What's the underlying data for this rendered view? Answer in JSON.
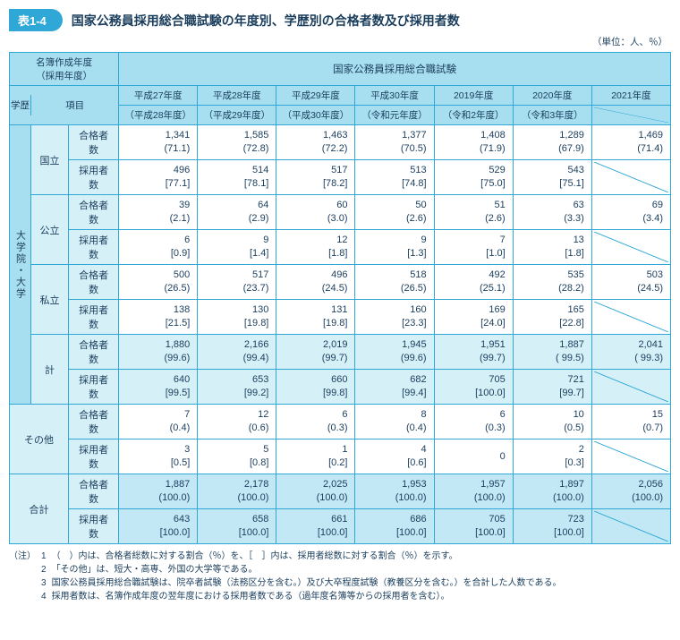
{
  "header": {
    "tag": "表1-4",
    "title": "国家公務員採用総合職試験の年度別、学歴別の合格者数及び採用者数"
  },
  "unit": "（単位：人、％）",
  "colHeaders": {
    "listYear": "名簿作成年度\n（採用年度）",
    "edu": "学歴",
    "item": "項目",
    "examTitle": "国家公務員採用総合職試験",
    "years": [
      "平成27年度",
      "平成28年度",
      "平成29年度",
      "平成30年度",
      "2019年度",
      "2020年度",
      "2021年度"
    ],
    "subyears": [
      "（平成28年度）",
      "（平成29年度）",
      "（平成30年度）",
      "（令和元年度）",
      "（令和2年度）",
      "（令和3年度）"
    ]
  },
  "rowLabels": {
    "gradUniv": "大学院・大学",
    "national": "国立",
    "public": "公立",
    "private": "私立",
    "subtotal": "計",
    "other": "その他",
    "total": "合計",
    "pass": "合格者数",
    "hire": "採用者数"
  },
  "data": {
    "national": {
      "pass": [
        "1,341\n(71.1)",
        "1,585\n(72.8)",
        "1,463\n(72.2)",
        "1,377\n(70.5)",
        "1,408\n(71.9)",
        "1,289\n(67.9)",
        "1,469\n(71.4)"
      ],
      "hire": [
        "496\n[77.1]",
        "514\n[78.1]",
        "517\n[78.2]",
        "513\n[74.8]",
        "529\n[75.0]",
        "543\n[75.1]",
        ""
      ]
    },
    "public": {
      "pass": [
        "39\n(2.1)",
        "64\n(2.9)",
        "60\n(3.0)",
        "50\n(2.6)",
        "51\n(2.6)",
        "63\n(3.3)",
        "69\n(3.4)"
      ],
      "hire": [
        "6\n[0.9]",
        "9\n[1.4]",
        "12\n[1.8]",
        "9\n[1.3]",
        "7\n[1.0]",
        "13\n[1.8]",
        ""
      ]
    },
    "private": {
      "pass": [
        "500\n(26.5)",
        "517\n(23.7)",
        "496\n(24.5)",
        "518\n(26.5)",
        "492\n(25.1)",
        "535\n(28.2)",
        "503\n(24.5)"
      ],
      "hire": [
        "138\n[21.5]",
        "130\n[19.8]",
        "131\n[19.8]",
        "160\n[23.3]",
        "169\n[24.0]",
        "165\n[22.8]",
        ""
      ]
    },
    "subtotal": {
      "pass": [
        "1,880\n(99.6)",
        "2,166\n(99.4)",
        "2,019\n(99.7)",
        "1,945\n(99.6)",
        "1,951\n(99.7)",
        "1,887\n( 99.5)",
        "2,041\n( 99.3)"
      ],
      "hire": [
        "640\n[99.5]",
        "653\n[99.2]",
        "660\n[99.8]",
        "682\n[99.4]",
        "705\n[100.0]",
        "721\n[99.7]",
        ""
      ]
    },
    "other": {
      "pass": [
        "7\n(0.4)",
        "12\n(0.6)",
        "6\n(0.3)",
        "8\n(0.4)",
        "6\n(0.3)",
        "10\n(0.5)",
        "15\n(0.7)"
      ],
      "hire": [
        "3\n[0.5]",
        "5\n[0.8]",
        "1\n[0.2]",
        "4\n[0.6]",
        "0\n",
        "2\n[0.3]",
        ""
      ]
    },
    "total": {
      "pass": [
        "1,887\n(100.0)",
        "2,178\n(100.0)",
        "2,025\n(100.0)",
        "1,953\n(100.0)",
        "1,957\n(100.0)",
        "1,897\n(100.0)",
        "2,056\n(100.0)"
      ],
      "hire": [
        "643\n[100.0]",
        "658\n[100.0]",
        "661\n[100.0]",
        "686\n[100.0]",
        "705\n[100.0]",
        "723\n[100.0]",
        ""
      ]
    }
  },
  "notesPrefix": "（注）",
  "notes": [
    "（　）内は、合格者総数に対する割合（％）を、［　］内は、採用者総数に対する割合（％）を示す。",
    "「その他」は、短大・高専、外国の大学等である。",
    "国家公務員採用総合職試験は、院卒者試験（法務区分を含む。）及び大卒程度試験（教養区分を含む。）を合計した人数である。",
    "採用者数は、名簿作成年度の翌年度における採用者数である（過年度名簿等からの採用者を含む）。"
  ],
  "colors": {
    "border": "#2fa8d8",
    "headerBg": "#a8dff0",
    "labelBg": "#d6f0f8",
    "text": "#1a3d5c"
  }
}
